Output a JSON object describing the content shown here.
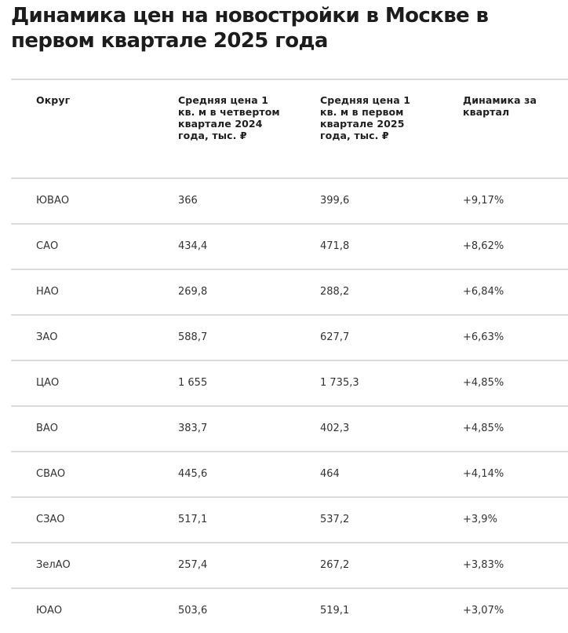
{
  "title": "Динамика цен на новостройки в Москве в первом квартале 2025 года",
  "table": {
    "headers": [
      "Округ",
      "Средняя цена 1 кв. м в четвертом квартале 2024 года, тыс. ₽",
      "Средняя цена 1 кв. м в первом квартале 2025 года, тыс. ₽",
      "Динамика за квартал"
    ],
    "rows": [
      {
        "district": "ЮВАО",
        "q4_2024": "366",
        "q1_2025": "399,6",
        "change": "+9,17%"
      },
      {
        "district": "САО",
        "q4_2024": "434,4",
        "q1_2025": "471,8",
        "change": "+8,62%"
      },
      {
        "district": "НАО",
        "q4_2024": "269,8",
        "q1_2025": "288,2",
        "change": "+6,84%"
      },
      {
        "district": "ЗАО",
        "q4_2024": "588,7",
        "q1_2025": "627,7",
        "change": "+6,63%"
      },
      {
        "district": "ЦАО",
        "q4_2024": "1 655",
        "q1_2025": "1 735,3",
        "change": "+4,85%"
      },
      {
        "district": "ВАО",
        "q4_2024": "383,7",
        "q1_2025": "402,3",
        "change": "+4,85%"
      },
      {
        "district": "СВАО",
        "q4_2024": "445,6",
        "q1_2025": "464",
        "change": "+4,14%"
      },
      {
        "district": "СЗАО",
        "q4_2024": "517,1",
        "q1_2025": "537,2",
        "change": "+3,9%"
      },
      {
        "district": "ЗелАО",
        "q4_2024": "257,4",
        "q1_2025": "267,2",
        "change": "+3,83%"
      },
      {
        "district": "ЮАО",
        "q4_2024": "503,6",
        "q1_2025": "519,1",
        "change": "+3,07%"
      }
    ]
  },
  "colors": {
    "text": "#1c1c1c",
    "divider": "#dcdcdc",
    "background": "#ffffff"
  }
}
